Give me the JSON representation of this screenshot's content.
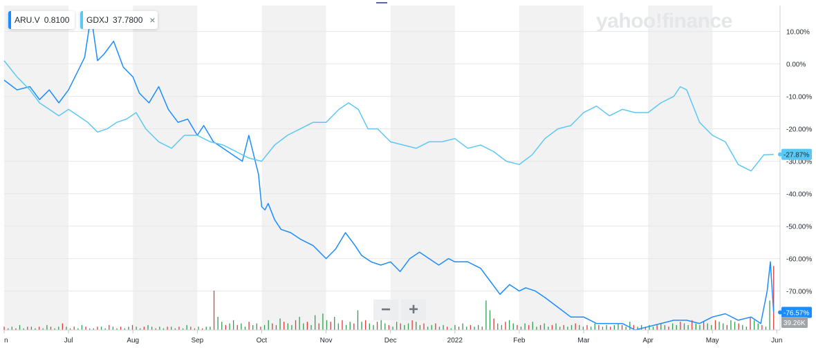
{
  "legend": [
    {
      "symbol": "ARU.V",
      "value": "0.8100",
      "color": "#1a8cff"
    },
    {
      "symbol": "GDXJ",
      "value": "37.7800",
      "color": "#5ac8f5",
      "close": "×"
    }
  ],
  "logo": "yahoo!finance",
  "zoom": {
    "out": "−",
    "in": "+"
  },
  "colors": {
    "aru": "#1a8cff",
    "gdxj": "#5ac8f5",
    "vol_up": "#2e9e4f",
    "vol_down": "#e03a3a",
    "band": "#f2f2f2",
    "grid": "#e6e6e6"
  },
  "chart_data": {
    "type": "line",
    "y_axis": {
      "unit": "%",
      "range": [
        -82,
        18
      ],
      "ticks": [
        10,
        0,
        -10,
        -20,
        -30,
        -40,
        -50,
        -60,
        -70
      ]
    },
    "y_tick_labels": [
      "10.00%",
      "0.00%",
      "-10.00%",
      "-20.00%",
      "-30.00%",
      "-40.00%",
      "-50.00%",
      "-60.00%",
      "-70.00%"
    ],
    "x_labels": [
      "n",
      "Jul",
      "Aug",
      "Sep",
      "Oct",
      "Nov",
      "Dec",
      "2022",
      "Feb",
      "Mar",
      "Apr",
      "May",
      "Jun"
    ],
    "x_label_pos": [
      0,
      1,
      2,
      3,
      4,
      5,
      6,
      7,
      8,
      9,
      10,
      11,
      12
    ],
    "shaded_months": [
      [
        0,
        1
      ],
      [
        2,
        3
      ],
      [
        4,
        5
      ],
      [
        6,
        7
      ],
      [
        8,
        9
      ],
      [
        10,
        11
      ]
    ],
    "last_values": {
      "gdxj": "-27.87%",
      "aru": "-76.57%",
      "volume": "39.26K"
    },
    "series": [
      {
        "name": "ARU.V",
        "x": [
          0,
          0.2,
          0.4,
          0.55,
          0.7,
          0.85,
          1.0,
          1.1,
          1.25,
          1.35,
          1.45,
          1.55,
          1.7,
          1.85,
          2.0,
          2.1,
          2.25,
          2.4,
          2.55,
          2.7,
          2.85,
          3.0,
          3.1,
          3.25,
          3.4,
          3.55,
          3.7,
          3.8,
          3.95,
          4.0,
          4.05,
          4.1,
          4.2,
          4.3,
          4.45,
          4.6,
          4.8,
          5.0,
          5.15,
          5.3,
          5.45,
          5.55,
          5.7,
          5.85,
          6.0,
          6.15,
          6.3,
          6.45,
          6.6,
          6.75,
          6.9,
          7.0,
          7.2,
          7.4,
          7.55,
          7.7,
          7.85,
          8.0,
          8.1,
          8.25,
          8.4,
          8.6,
          8.8,
          9.0,
          9.2,
          9.4,
          9.6,
          9.8,
          10.0,
          10.2,
          10.4,
          10.6,
          10.8,
          11.0,
          11.2,
          11.4,
          11.6,
          11.75,
          11.85,
          11.9,
          11.95
        ],
        "values": [
          -5,
          -8,
          -7,
          -11,
          -8,
          -12,
          -8,
          -4,
          2,
          15,
          1,
          3,
          7,
          -1,
          -4,
          -9,
          -12,
          -7,
          -14,
          -18,
          -17,
          -22,
          -19,
          -24,
          -26,
          -28,
          -30,
          -22,
          -34,
          -44,
          -45,
          -43,
          -48,
          -51,
          -52,
          -54,
          -56,
          -60,
          -57,
          -52,
          -56,
          -59,
          -61,
          -62,
          -61,
          -64,
          -60,
          -58,
          -60,
          -62,
          -60,
          -61,
          -61,
          -63,
          -67,
          -71,
          -68,
          -70,
          -69,
          -70,
          -72,
          -75,
          -78,
          -78,
          -80,
          -80,
          -80,
          -82,
          -81,
          -80,
          -79,
          -79,
          -80,
          -78,
          -77,
          -79,
          -78,
          -80,
          -70,
          -61,
          -76.57
        ]
      },
      {
        "name": "GDXJ",
        "x": [
          0,
          0.2,
          0.4,
          0.55,
          0.7,
          0.85,
          1.0,
          1.15,
          1.3,
          1.45,
          1.6,
          1.75,
          1.9,
          2.05,
          2.2,
          2.4,
          2.6,
          2.8,
          3.0,
          3.2,
          3.4,
          3.6,
          3.8,
          4.0,
          4.2,
          4.4,
          4.6,
          4.8,
          5.0,
          5.2,
          5.35,
          5.5,
          5.65,
          5.8,
          6.0,
          6.2,
          6.4,
          6.6,
          6.8,
          7.0,
          7.2,
          7.4,
          7.6,
          7.8,
          8.0,
          8.2,
          8.4,
          8.6,
          8.8,
          9.0,
          9.2,
          9.4,
          9.6,
          9.8,
          10.0,
          10.2,
          10.4,
          10.5,
          10.6,
          10.8,
          11.0,
          11.2,
          11.4,
          11.6,
          11.8,
          11.95
        ],
        "values": [
          1,
          -4,
          -8,
          -12,
          -14,
          -16,
          -14,
          -16,
          -18,
          -21,
          -20,
          -18,
          -17,
          -15,
          -20,
          -24,
          -26,
          -22,
          -22,
          -24,
          -25,
          -27,
          -29,
          -30,
          -25,
          -22,
          -20,
          -18,
          -18,
          -14,
          -12,
          -14,
          -20,
          -20,
          -24,
          -25,
          -26,
          -24,
          -24,
          -23,
          -26,
          -25,
          -27,
          -30,
          -31,
          -28,
          -23,
          -20,
          -19,
          -15,
          -13,
          -16,
          -14,
          -15,
          -15,
          -12,
          -10,
          -7,
          -8,
          -18,
          -22,
          -24,
          -31,
          -33,
          -28,
          -27.87
        ]
      }
    ],
    "volume": {
      "max": 40,
      "bars": [
        2,
        1,
        2,
        1,
        3,
        1,
        2,
        2,
        1,
        2,
        1,
        3,
        2,
        1,
        2,
        4,
        2,
        1,
        2,
        1,
        3,
        2,
        1,
        1,
        2,
        2,
        1,
        3,
        2,
        1,
        2,
        1,
        2,
        3,
        2,
        1,
        2,
        3,
        2,
        1,
        2,
        1,
        2,
        2,
        1,
        2,
        1,
        3,
        2,
        1,
        2,
        1,
        2,
        2,
        24,
        8,
        5,
        3,
        4,
        6,
        3,
        4,
        2,
        5,
        3,
        4,
        2,
        3,
        6,
        4,
        3,
        7,
        5,
        4,
        3,
        6,
        8,
        4,
        5,
        3,
        9,
        4,
        10,
        6,
        5,
        8,
        4,
        6,
        3,
        5,
        4,
        12,
        5,
        6,
        4,
        3,
        5,
        7,
        4,
        3,
        2,
        5,
        4,
        3,
        4,
        6,
        5,
        3,
        4,
        2,
        3,
        4,
        2,
        3,
        2,
        1,
        3,
        2,
        4,
        2,
        3,
        2,
        3,
        2,
        18,
        12,
        7,
        4,
        3,
        5,
        6,
        4,
        3,
        2,
        4,
        3,
        5,
        2,
        3,
        4,
        2,
        3,
        4,
        2,
        3,
        2,
        3,
        4,
        3,
        2,
        3,
        2,
        4,
        3,
        2,
        3,
        2,
        3,
        4,
        3,
        2,
        5,
        3,
        2,
        3,
        2,
        3,
        2,
        3,
        4,
        3,
        2,
        4,
        3,
        5,
        4,
        3,
        6,
        4,
        3,
        5,
        4,
        3,
        6,
        5,
        4,
        3,
        6,
        5,
        4,
        3,
        2,
        8,
        6,
        4,
        3,
        2,
        18,
        39
      ],
      "down_every": 3
    }
  }
}
